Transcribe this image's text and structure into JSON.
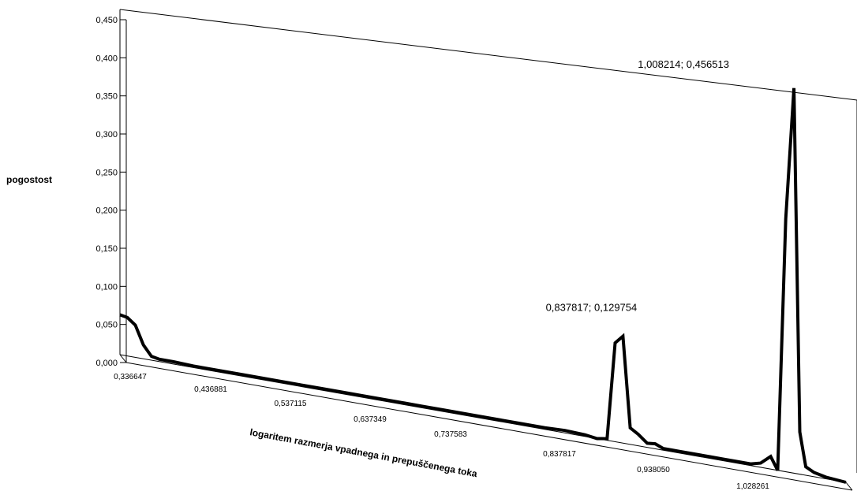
{
  "chart_data": {
    "type": "line",
    "style": "3d-perspective",
    "title": "",
    "ylabel": "pogostost",
    "xlabel": "logaritem razmerja vpadnega in prepuščenega toka",
    "ylim": [
      0,
      0.45
    ],
    "y_ticks": [
      "0,000",
      "0,050",
      "0,100",
      "0,150",
      "0,200",
      "0,250",
      "0,300",
      "0,350",
      "0,400",
      "0,450"
    ],
    "x_ticks": [
      "0,336647",
      "0,436881",
      "0,537115",
      "0,637349",
      "0,737583",
      "0,837817",
      "0,938050",
      "1,028261"
    ],
    "grid": false,
    "legend": "none",
    "line_color": "#000000",
    "series": [
      {
        "x": [
          0.336647,
          0.344,
          0.352,
          0.36,
          0.368,
          0.376,
          0.39,
          0.41,
          0.436881,
          0.46,
          0.49,
          0.52,
          0.537115,
          0.56,
          0.59,
          0.62,
          0.637349,
          0.66,
          0.69,
          0.72,
          0.737583,
          0.76,
          0.78,
          0.8,
          0.812,
          0.822,
          0.83,
          0.837817,
          0.845,
          0.853,
          0.862,
          0.87,
          0.878,
          0.886,
          0.894,
          0.902,
          0.915,
          0.925,
          0.93805,
          0.95,
          0.965,
          0.975,
          0.985,
          0.992,
          1.0,
          1.008214,
          1.014,
          1.02,
          1.028261,
          1.04,
          1.06
        ],
        "y": [
          0.052,
          0.05,
          0.042,
          0.018,
          0.005,
          0.003,
          0.003,
          0.002,
          0.002,
          0.002,
          0.002,
          0.002,
          0.002,
          0.002,
          0.002,
          0.002,
          0.002,
          0.002,
          0.002,
          0.002,
          0.002,
          0.002,
          0.003,
          0.002,
          0.0,
          0.002,
          0.12,
          0.129754,
          0.02,
          0.014,
          0.005,
          0.006,
          0.002,
          0.002,
          0.002,
          0.002,
          0.002,
          0.002,
          0.002,
          0.002,
          0.002,
          0.005,
          0.015,
          0.0,
          0.3,
          0.456513,
          0.05,
          0.01,
          0.005,
          0.002,
          0.0
        ]
      }
    ],
    "annotations": [
      {
        "text": "0,837817; 0,129754",
        "x": 0.837817,
        "y": 0.129754
      },
      {
        "text": "1,008214; 0,456513",
        "x": 1.008214,
        "y": 0.456513
      }
    ]
  }
}
